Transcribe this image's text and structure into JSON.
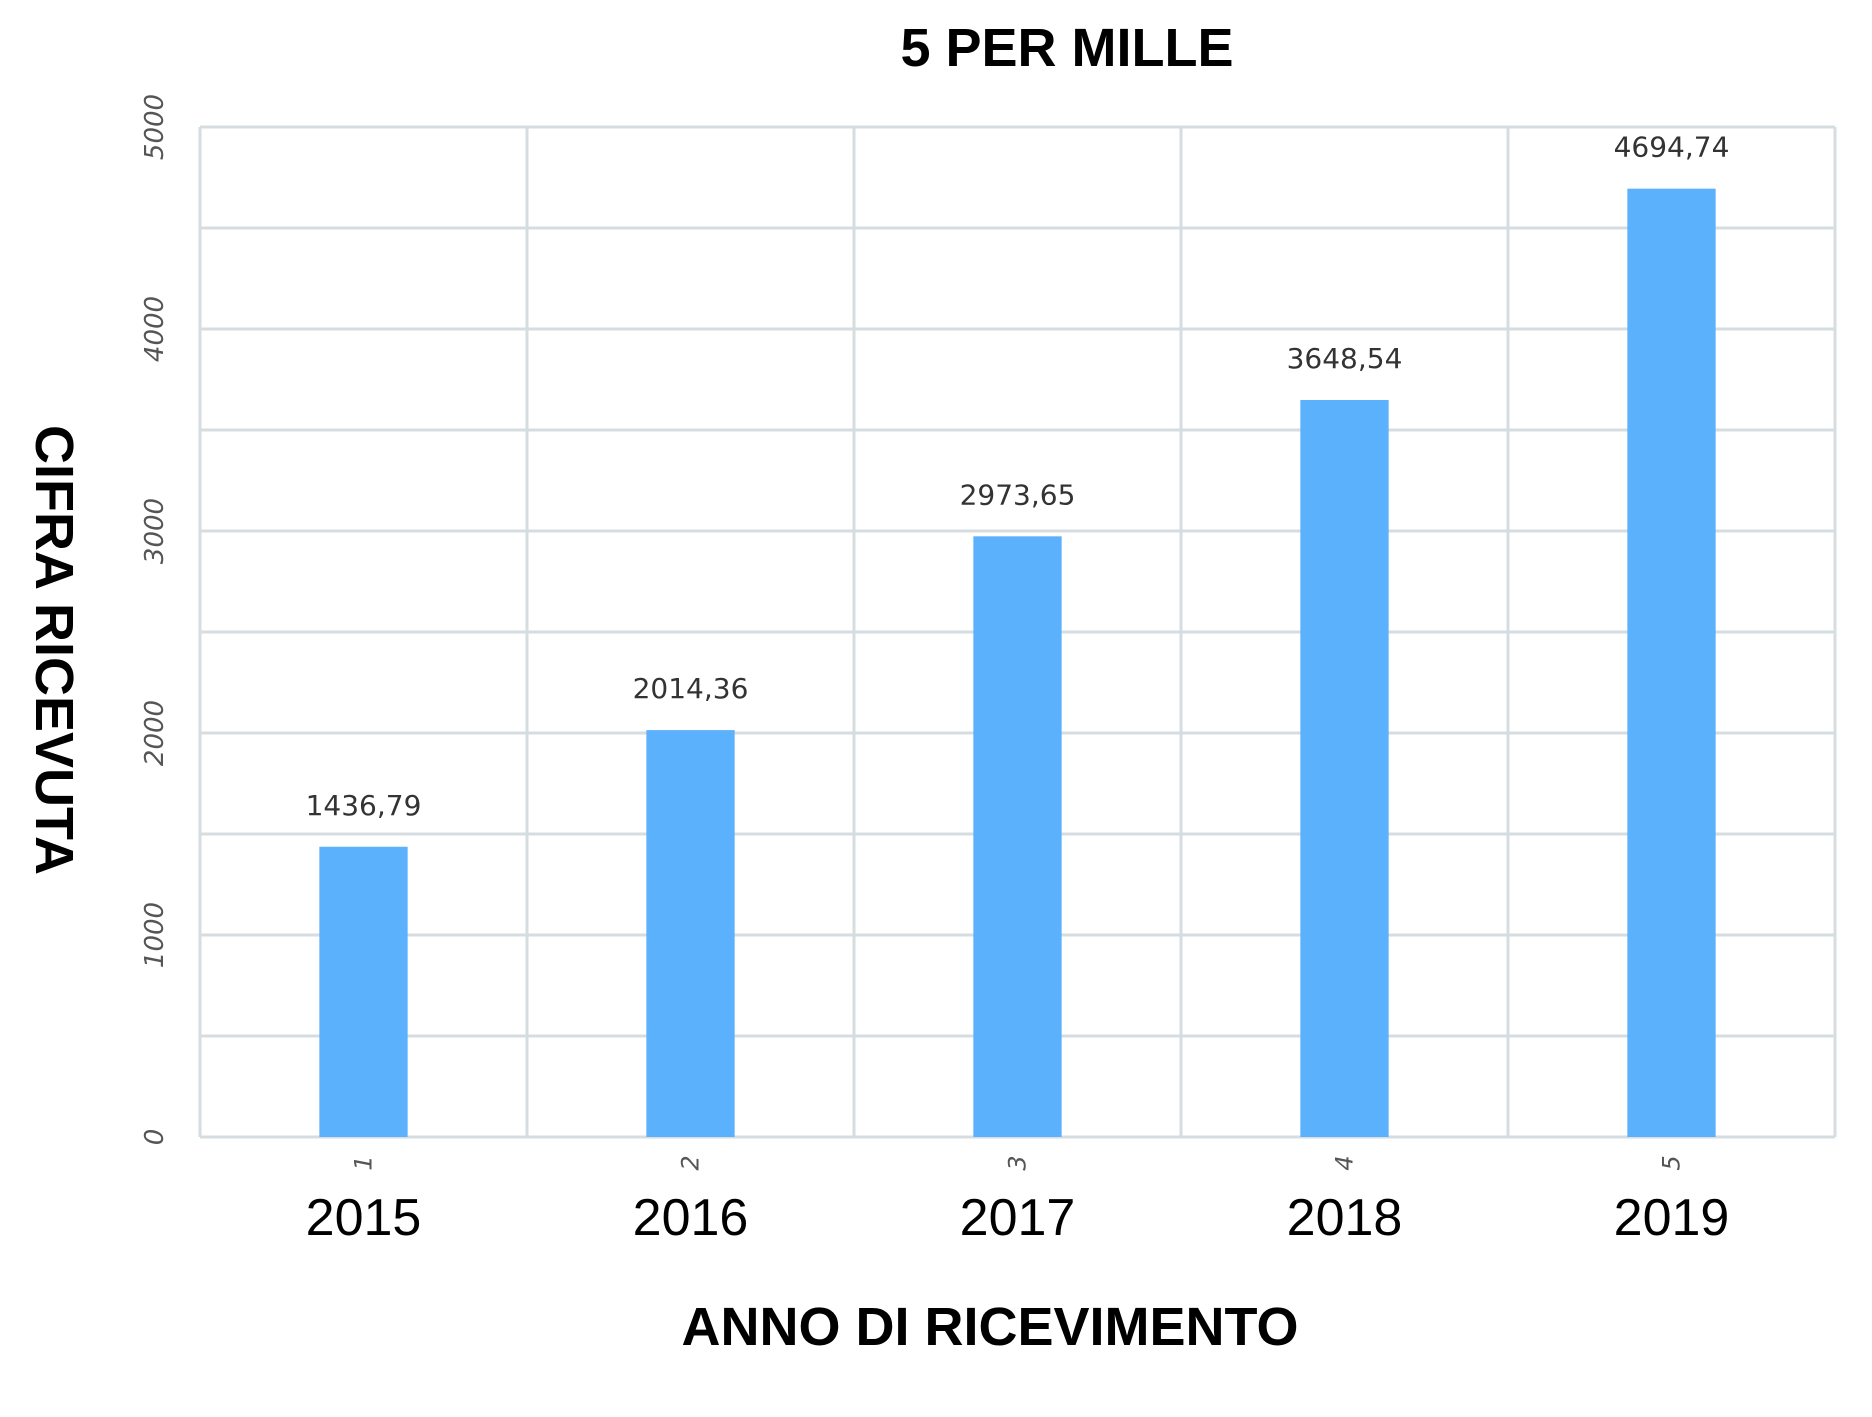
{
  "chart_data": {
    "type": "bar",
    "title": "5 PER MILLE",
    "xlabel": "ANNO DI RICEVIMENTO",
    "ylabel": "CIFRA RICEVUTA",
    "categories": [
      "1",
      "2",
      "3",
      "4",
      "5"
    ],
    "category_years": [
      "2015",
      "2016",
      "2017",
      "2018",
      "2019"
    ],
    "values": [
      1436.79,
      2014.36,
      2973.65,
      3648.54,
      4694.74
    ],
    "value_labels": [
      "1436,79",
      "2014,36",
      "2973,65",
      "3648,54",
      "4694,74"
    ],
    "ylim": [
      0,
      5000
    ],
    "yticks": [
      0,
      1000,
      2000,
      3000,
      4000,
      5000
    ],
    "grid": true,
    "bar_color": "#5cb1fc",
    "grid_color": "#d5dde0"
  }
}
